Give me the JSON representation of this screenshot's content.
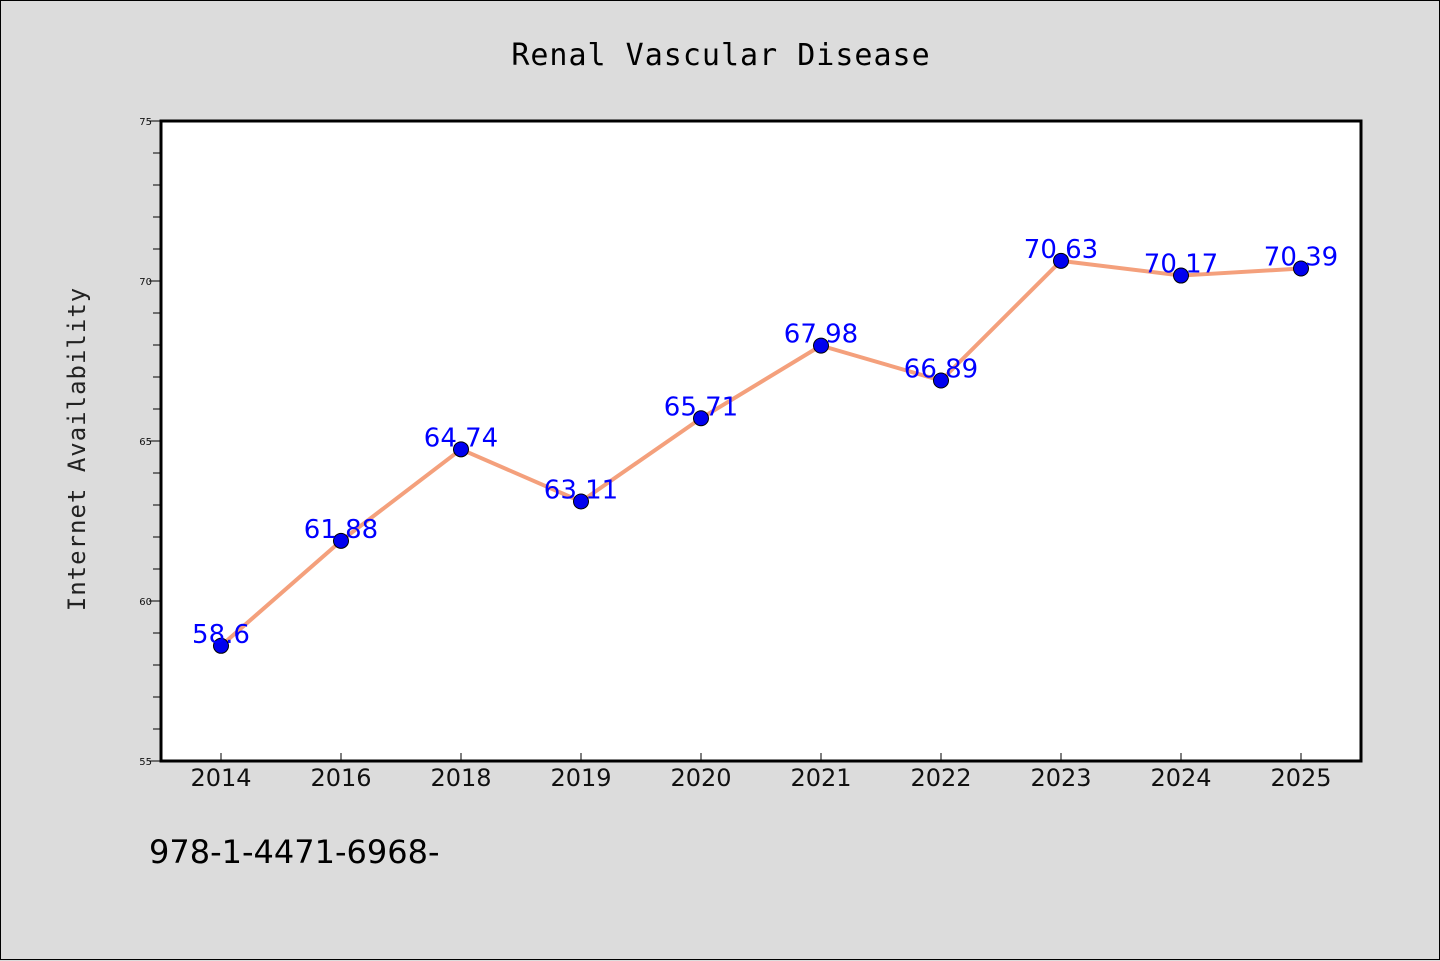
{
  "footer_code": "978-1-4471-6968-",
  "chart_data": {
    "type": "line",
    "title": "Renal Vascular Disease",
    "xlabel": "",
    "ylabel": "Internet Availability",
    "categories": [
      "2014",
      "2016",
      "2018",
      "2019",
      "2020",
      "2021",
      "2022",
      "2023",
      "2024",
      "2025"
    ],
    "values": [
      58.6,
      61.88,
      64.74,
      63.11,
      65.71,
      67.98,
      66.89,
      70.63,
      70.17,
      70.39
    ],
    "data_labels": [
      "58.6",
      "61.88",
      "64.74",
      "63.11",
      "65.71",
      "67.98",
      "66.89",
      "70.63",
      "70.17",
      "70.39"
    ],
    "ylim": [
      55,
      75
    ],
    "yticks": [
      55,
      60,
      65,
      70,
      75
    ],
    "grid": false,
    "colors": {
      "line": "#f4a07c",
      "marker": "#0000ee",
      "data_label": "#0000ff",
      "plot_background": "#ffffff",
      "page_background": "#dcdcdc"
    }
  }
}
